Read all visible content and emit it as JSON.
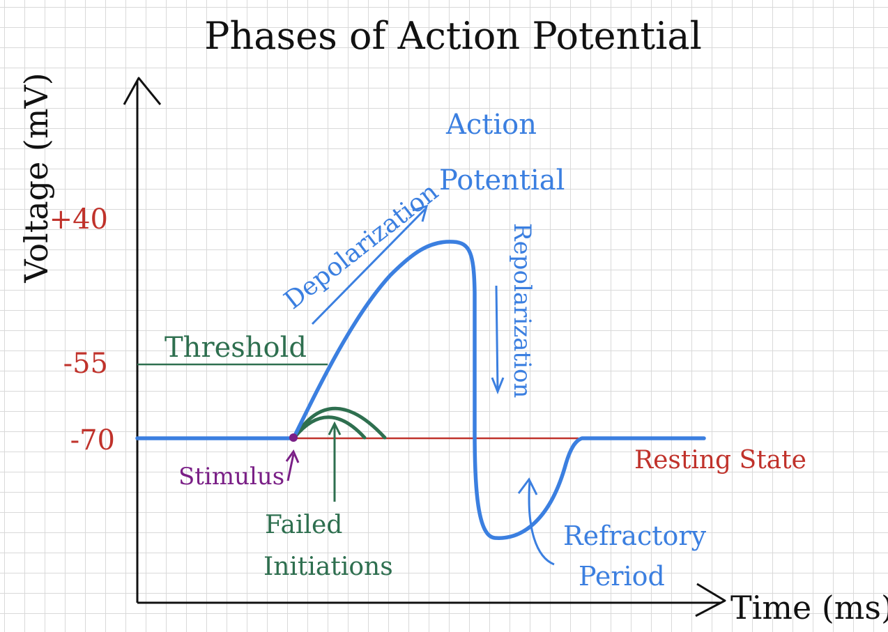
{
  "title": "Phases of Action Potential",
  "axes": {
    "y_label": "Voltage (mV)",
    "x_label": "Time (ms)"
  },
  "y_ticks": [
    "+40",
    "-55",
    "-70"
  ],
  "labels": {
    "threshold": "Threshold",
    "resting_state": "Resting State",
    "stimulus": "Stimulus",
    "failed_initiations": [
      "Failed",
      "Initiations"
    ],
    "depolarization": "Depolarization",
    "action_potential": [
      "Action",
      "Potential"
    ],
    "repolarization": "Repolarization",
    "refractory_period": [
      "Refractory",
      "Period"
    ]
  },
  "colors": {
    "ink": "#111111",
    "ticks": "#c0322b",
    "resting": "#c0322b",
    "threshold": "#2e6f4f",
    "failed": "#2e6f4f",
    "stimulus": "#7a1f86",
    "potential": "#3b7fe0",
    "annotations": "#3b7fe0"
  }
}
